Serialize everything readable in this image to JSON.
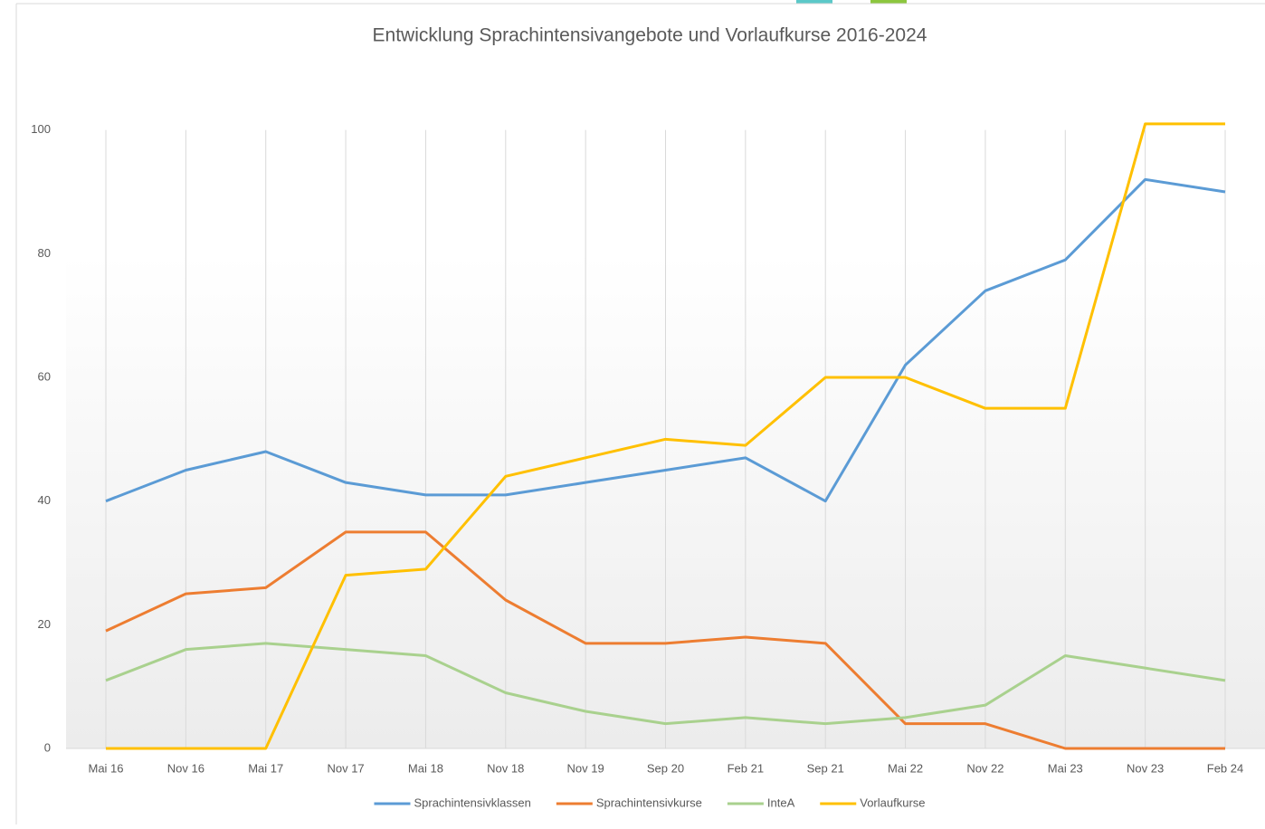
{
  "chart_data": {
    "type": "line",
    "title": "Entwicklung Sprachintensivangebote und Vorlaufkurse 2016-2024",
    "categories": [
      "Mai 16",
      "Nov 16",
      "Mai 17",
      "Nov 17",
      "Mai 18",
      "Nov 18",
      "Nov 19",
      "Sep 20",
      "Feb 21",
      "Sep 21",
      "Mai 22",
      "Nov 22",
      "Mai 23",
      "Nov 23",
      "Feb 24"
    ],
    "series": [
      {
        "name": "Sprachintensivklassen",
        "color": "#5b9bd5",
        "values": [
          40,
          45,
          48,
          43,
          41,
          41,
          43,
          45,
          47,
          40,
          62,
          74,
          79,
          92,
          90
        ]
      },
      {
        "name": "Sprachintensivkurse",
        "color": "#ed7d31",
        "values": [
          19,
          25,
          26,
          35,
          35,
          24,
          17,
          17,
          18,
          17,
          4,
          4,
          0,
          0,
          0
        ]
      },
      {
        "name": "InteA",
        "color": "#a9d18e",
        "values": [
          11,
          16,
          17,
          16,
          15,
          9,
          6,
          4,
          5,
          4,
          5,
          7,
          15,
          13,
          11
        ]
      },
      {
        "name": "Vorlaufkurse",
        "color": "#ffc000",
        "values": [
          0,
          0,
          0,
          28,
          29,
          44,
          47,
          50,
          49,
          60,
          60,
          55,
          55,
          101,
          101
        ]
      }
    ],
    "ylim": [
      0,
      120
    ],
    "yticks": [
      0,
      20,
      40,
      60,
      80,
      100
    ],
    "grid": true,
    "legend": "bottom"
  }
}
